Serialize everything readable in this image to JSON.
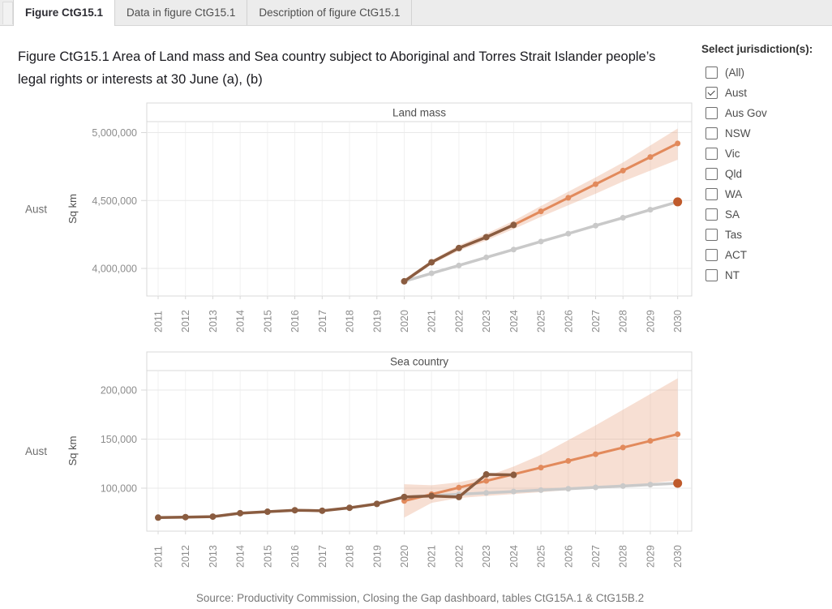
{
  "tabs": [
    {
      "label": "Figure CtG15.1",
      "active": true
    },
    {
      "label": "Data in figure CtG15.1",
      "active": false
    },
    {
      "label": "Description of figure CtG15.1",
      "active": false
    }
  ],
  "title": "Figure CtG15.1 Area of Land mass and Sea country subject to Aboriginal and Torres Strait Islander people’s legal rights or interests at 30 June (a), (b)",
  "jurisdiction_filter": {
    "heading": "Select jurisdiction(s):",
    "options": [
      {
        "label": "(All)",
        "checked": false
      },
      {
        "label": "Aust",
        "checked": true
      },
      {
        "label": "Aus Gov",
        "checked": false
      },
      {
        "label": "NSW",
        "checked": false
      },
      {
        "label": "Vic",
        "checked": false
      },
      {
        "label": "Qld",
        "checked": false
      },
      {
        "label": "WA",
        "checked": false
      },
      {
        "label": "SA",
        "checked": false
      },
      {
        "label": "Tas",
        "checked": false
      },
      {
        "label": "ACT",
        "checked": false
      },
      {
        "label": "NT",
        "checked": false
      }
    ]
  },
  "colors": {
    "actual": "#8a5c40",
    "projection": "#e28a5c",
    "target_trajectory": "#c9c9c9",
    "target_point": "#bf5a2b",
    "band_fill": "#e28a5c"
  },
  "source_note": "Source: Productivity Commission, Closing the Gap dashboard, tables CtG15A.1 & CtG15B.2",
  "chart_data": [
    {
      "type": "line",
      "panel_title": "Land mass",
      "row_label": "Aust",
      "ylabel": "Sq km",
      "ylim": [
        3830000,
        5080000
      ],
      "years": [
        2011,
        2012,
        2013,
        2014,
        2015,
        2016,
        2017,
        2018,
        2019,
        2020,
        2021,
        2022,
        2023,
        2024,
        2025,
        2026,
        2027,
        2028,
        2029,
        2030
      ],
      "yticks": [
        {
          "value": 5000000,
          "label": "5,000,000"
        },
        {
          "value": 4500000,
          "label": "4,500,000"
        },
        {
          "value": 4000000,
          "label": "4,000,000"
        }
      ],
      "series": [
        {
          "name": "actual",
          "role": "actual",
          "years": [
            2020,
            2021,
            2022,
            2023,
            2024
          ],
          "values": [
            3905000,
            4045000,
            4150000,
            4230000,
            4320000
          ]
        },
        {
          "name": "projection",
          "role": "projection",
          "years": [
            2020,
            2021,
            2022,
            2023,
            2024,
            2025,
            2026,
            2027,
            2028,
            2029,
            2030
          ],
          "values": [
            3905000,
            4045000,
            4150000,
            4230000,
            4320000,
            4420000,
            4520000,
            4620000,
            4720000,
            4820000,
            4920000
          ]
        },
        {
          "name": "target-trajectory",
          "role": "target_trajectory",
          "years": [
            2020,
            2021,
            2022,
            2023,
            2024,
            2025,
            2026,
            2027,
            2028,
            2029,
            2030
          ],
          "values": [
            3905000,
            3964000,
            4022000,
            4081000,
            4139000,
            4198000,
            4256000,
            4315000,
            4373000,
            4432000,
            4490000
          ]
        },
        {
          "name": "target-2030",
          "role": "target_point",
          "point_only": true,
          "years": [
            2030
          ],
          "values": [
            4490000
          ]
        }
      ],
      "band": {
        "years": [
          2020,
          2021,
          2022,
          2023,
          2024,
          2025,
          2026,
          2027,
          2028,
          2029,
          2030
        ],
        "upper": [
          3920000,
          4060000,
          4170000,
          4255000,
          4350000,
          4460000,
          4565000,
          4670000,
          4780000,
          4905000,
          5030000
        ],
        "lower": [
          3890000,
          4030000,
          4130000,
          4205000,
          4290000,
          4380000,
          4465000,
          4550000,
          4640000,
          4720000,
          4800000
        ]
      }
    },
    {
      "type": "line",
      "panel_title": "Sea country",
      "row_label": "Aust",
      "ylabel": "Sq km",
      "ylim": [
        55000,
        225000
      ],
      "years": [
        2011,
        2012,
        2013,
        2014,
        2015,
        2016,
        2017,
        2018,
        2019,
        2020,
        2021,
        2022,
        2023,
        2024,
        2025,
        2026,
        2027,
        2028,
        2029,
        2030
      ],
      "yticks": [
        {
          "value": 200000,
          "label": "200,000"
        },
        {
          "value": 150000,
          "label": "150,000"
        },
        {
          "value": 100000,
          "label": "100,000"
        }
      ],
      "series": [
        {
          "name": "actual",
          "role": "actual",
          "years": [
            2011,
            2012,
            2013,
            2014,
            2015,
            2016,
            2017,
            2018,
            2019,
            2020,
            2021,
            2022,
            2023,
            2024
          ],
          "values": [
            70000,
            70500,
            71000,
            74500,
            76000,
            77500,
            77000,
            80000,
            84000,
            91000,
            92000,
            91000,
            114000,
            113500
          ]
        },
        {
          "name": "projection",
          "role": "projection",
          "years": [
            2020,
            2021,
            2022,
            2023,
            2024,
            2025,
            2026,
            2027,
            2028,
            2029,
            2030
          ],
          "values": [
            87000,
            93800,
            100600,
            107400,
            114200,
            121000,
            127800,
            134600,
            141400,
            148200,
            155000
          ]
        },
        {
          "name": "target-trajectory",
          "role": "target_trajectory",
          "years": [
            2020,
            2021,
            2022,
            2023,
            2024,
            2025,
            2026,
            2027,
            2028,
            2029,
            2030
          ],
          "values": [
            91000,
            92400,
            93800,
            95200,
            96600,
            98000,
            99400,
            100800,
            102200,
            103600,
            105000
          ]
        },
        {
          "name": "target-2030",
          "role": "target_point",
          "point_only": true,
          "years": [
            2030
          ],
          "values": [
            105000
          ]
        }
      ],
      "band": {
        "years": [
          2020,
          2021,
          2022,
          2023,
          2024,
          2025,
          2026,
          2027,
          2028,
          2029,
          2030
        ],
        "upper": [
          104000,
          103000,
          106000,
          112000,
          122000,
          134000,
          149000,
          164000,
          180000,
          196000,
          212000
        ],
        "lower": [
          70000,
          85000,
          90000,
          92000,
          94000,
          96000,
          98000,
          100000,
          102500,
          105000,
          108000
        ]
      }
    }
  ]
}
